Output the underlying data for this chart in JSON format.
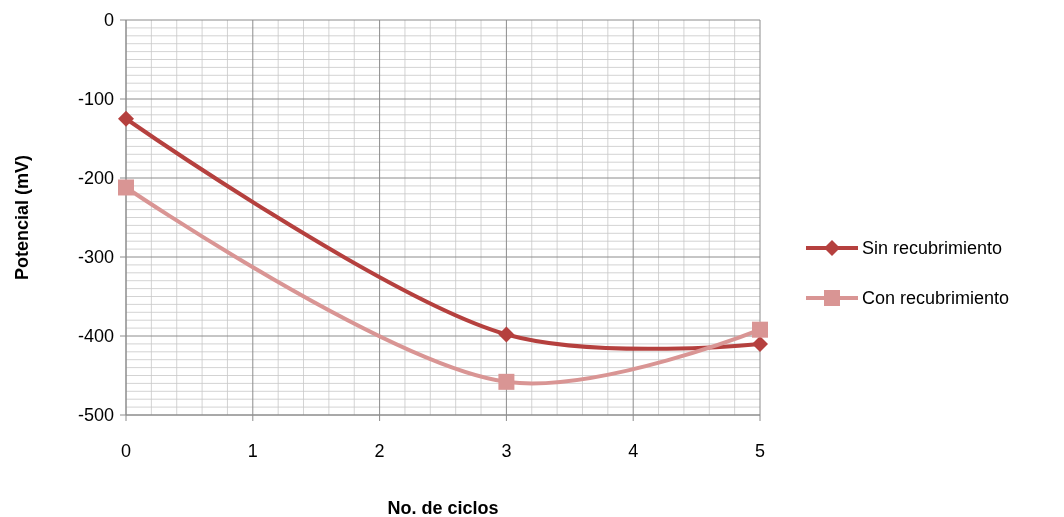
{
  "chart_data": {
    "type": "line",
    "xlabel": "No. de ciclos",
    "ylabel": "Potencial (mV)",
    "x": [
      0,
      3,
      5
    ],
    "xlim": [
      0,
      5
    ],
    "xticks": [
      0,
      1,
      2,
      3,
      4,
      5
    ],
    "ylim": [
      -500,
      0
    ],
    "yticks": [
      -500,
      -400,
      -300,
      -200,
      -100,
      0
    ],
    "grid": true,
    "legend": "right",
    "series": [
      {
        "name": "Sin recubrimiento",
        "color": "#b5403e",
        "values": [
          -125,
          -398,
          -410
        ],
        "marker": "diamond"
      },
      {
        "name": "Con recubrimiento",
        "color": "#d99594",
        "values": [
          -212,
          -458,
          -392
        ],
        "marker": "square"
      }
    ]
  }
}
